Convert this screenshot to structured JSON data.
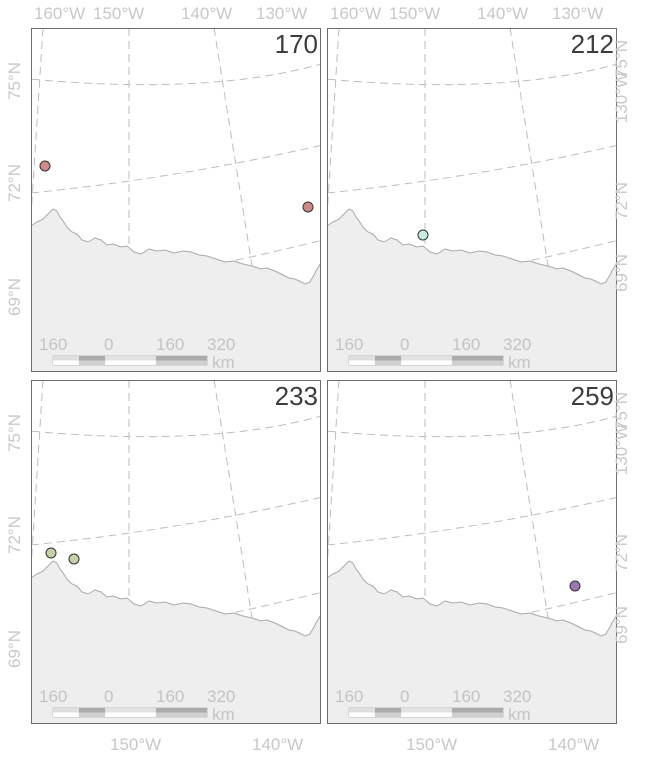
{
  "panels": [
    {
      "id": "170",
      "points": [
        {
          "color": "#d08a84"
        },
        {
          "color": "#d08a84"
        }
      ]
    },
    {
      "id": "212",
      "points": [
        {
          "color": "#c5eee0"
        }
      ]
    },
    {
      "id": "233",
      "points": [
        {
          "color": "#c3d3a4"
        },
        {
          "color": "#c3d3a4"
        }
      ]
    },
    {
      "id": "259",
      "points": [
        {
          "color": "#a178b6"
        }
      ]
    }
  ],
  "axes": {
    "top_lon": [
      "160°W",
      "150°W",
      "140°W",
      "130°W"
    ],
    "bottom_lon": [
      "150°W",
      "140°W"
    ],
    "left_lat": [
      "75°N",
      "72°N",
      "69°N"
    ],
    "right_lat": [
      "75°N",
      "130°W",
      "72°N",
      "69°N"
    ]
  },
  "scalebar": {
    "ticks": [
      "160",
      "0",
      "160",
      "320"
    ],
    "unit": "km"
  },
  "colors": {
    "land": "#eeeeee",
    "coast": "#a9a9a9",
    "graticule": "#bdbdbd",
    "frame": "#6e6e6e"
  }
}
